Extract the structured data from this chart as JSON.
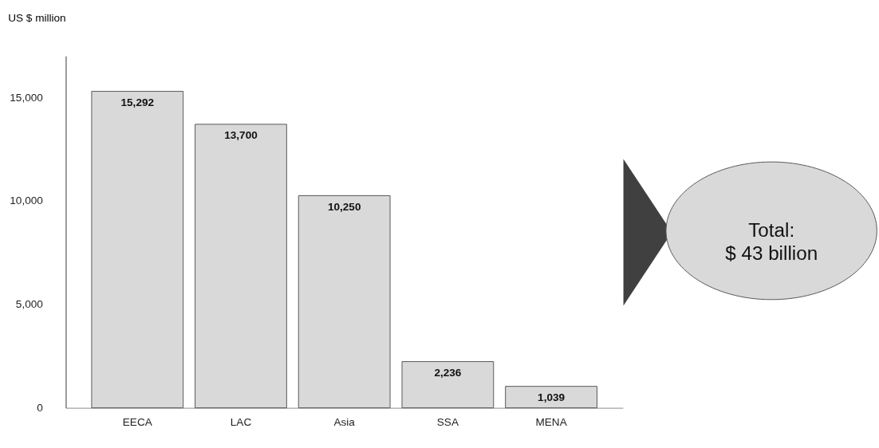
{
  "chart_data": {
    "type": "bar",
    "ylabel": "US $ million",
    "categories": [
      "EECA",
      "LAC",
      "Asia",
      "SSA",
      "MENA"
    ],
    "values": [
      15292,
      13700,
      10250,
      2236,
      1039
    ],
    "color": "#d9d9d9",
    "data_labels": true,
    "value_labels": [
      "15,292",
      "13,700",
      "10,250",
      "2,236",
      "1,039"
    ],
    "ylim": [
      0,
      17000
    ],
    "yticks": [
      0,
      {
        "value": 5000,
        "label": "5,000"
      },
      {
        "value": 10000,
        "label": "10,000"
      },
      {
        "value": 15000,
        "label": "15,000"
      }
    ],
    "grid": false,
    "annotations": [
      "Total:\n$ 43 billion"
    ]
  }
}
